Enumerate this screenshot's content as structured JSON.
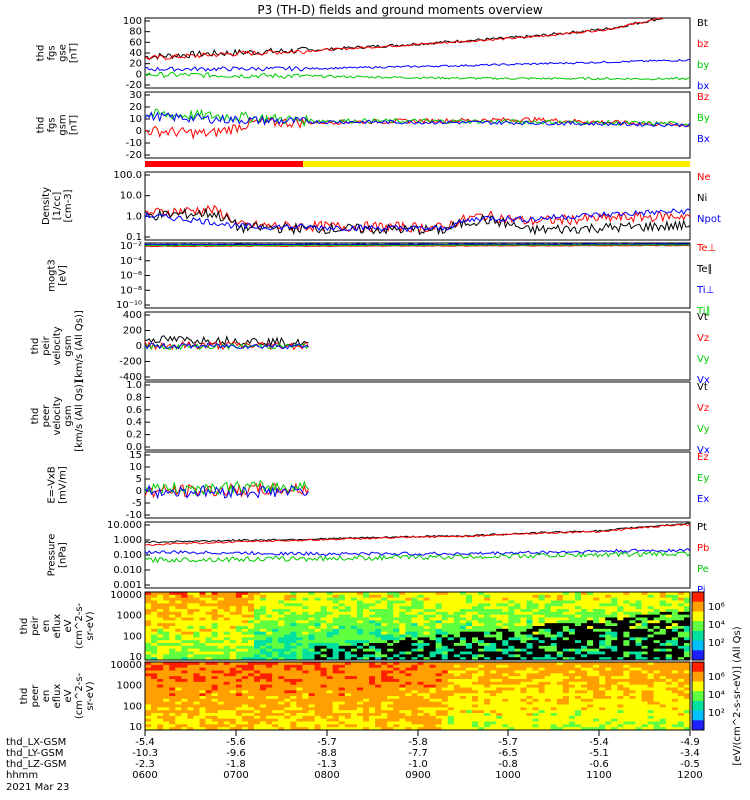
{
  "title": "P3 (TH-D) fields and ground moments overview",
  "colors": {
    "black": "#000000",
    "red": "#ff0000",
    "green": "#00cc00",
    "blue": "#0000ff",
    "yellow": "#ffee00"
  },
  "chart_data": [
    {
      "panel": "fgs-gse",
      "type": "line",
      "ylabel": [
        "thd",
        "fgs",
        "gse",
        "[nT]"
      ],
      "ylim": [
        -30,
        100
      ],
      "yticks": [
        "100",
        "80",
        "60",
        "40",
        "20",
        "0",
        "-20"
      ],
      "series": [
        {
          "name": "Bt",
          "color": "black",
          "path": [
            [
              0,
              28
            ],
            [
              0.15,
              35
            ],
            [
              0.3,
              40
            ],
            [
              0.5,
              52
            ],
            [
              0.7,
              65
            ],
            [
              0.85,
              80
            ],
            [
              0.95,
              100
            ]
          ],
          "noise": 8
        },
        {
          "name": "bz",
          "color": "red",
          "path": [
            [
              0,
              25
            ],
            [
              0.15,
              33
            ],
            [
              0.3,
              39
            ],
            [
              0.5,
              51
            ],
            [
              0.7,
              64
            ],
            [
              0.85,
              79
            ],
            [
              0.95,
              100
            ]
          ],
          "noise": 6
        },
        {
          "name": "by",
          "color": "green",
          "path": [
            [
              0,
              -5
            ],
            [
              0.3,
              -8
            ],
            [
              0.6,
              -12
            ],
            [
              1,
              -13
            ]
          ],
          "noise": 6
        },
        {
          "name": "bx",
          "color": "blue",
          "path": [
            [
              0,
              5
            ],
            [
              0.3,
              6
            ],
            [
              0.6,
              12
            ],
            [
              1,
              22
            ]
          ],
          "noise": 5
        }
      ]
    },
    {
      "panel": "fgs-gsm",
      "type": "line",
      "ylabel": [
        "thd",
        "fgs",
        "gsm",
        "[nT]"
      ],
      "ylim": [
        -30,
        30
      ],
      "yticks": [
        "30",
        "20",
        "10",
        "0",
        "-10",
        "-20"
      ],
      "series": [
        {
          "name": "Bz",
          "color": "red",
          "path": [
            [
              0,
              -5
            ],
            [
              0.12,
              -8
            ],
            [
              0.2,
              2
            ],
            [
              0.4,
              3
            ],
            [
              0.7,
              5
            ],
            [
              1,
              0
            ]
          ],
          "noise": 6
        },
        {
          "name": "By",
          "color": "green",
          "path": [
            [
              0,
              10
            ],
            [
              0.15,
              8
            ],
            [
              0.3,
              4
            ],
            [
              0.7,
              3
            ],
            [
              1,
              1
            ]
          ],
          "noise": 6
        },
        {
          "name": "Bx",
          "color": "blue",
          "path": [
            [
              0,
              8
            ],
            [
              0.15,
              5
            ],
            [
              0.3,
              3
            ],
            [
              0.7,
              2
            ],
            [
              1,
              0
            ]
          ],
          "noise": 5
        }
      ]
    },
    {
      "panel": "density",
      "type": "line",
      "ylabel": [
        "Density",
        "[1/cc]",
        "[cm-3]"
      ],
      "ylog": true,
      "ylim": [
        0.1,
        200
      ],
      "yticks": [
        "100.0",
        "10.0",
        "1.0",
        "0.1"
      ],
      "series": [
        {
          "name": "Ne",
          "color": "red",
          "path": [
            [
              0,
              2
            ],
            [
              0.12,
              3
            ],
            [
              0.17,
              0.5
            ],
            [
              0.55,
              0.4
            ],
            [
              0.62,
              1.5
            ],
            [
              0.7,
              0.8
            ],
            [
              1,
              1.5
            ]
          ],
          "noise": 0.5
        },
        {
          "name": "Ni",
          "color": "black",
          "path": [
            [
              0,
              1.5
            ],
            [
              0.12,
              2
            ],
            [
              0.17,
              0.4
            ],
            [
              0.55,
              0.3
            ],
            [
              0.62,
              1
            ],
            [
              0.7,
              0.3
            ],
            [
              1,
              0.5
            ]
          ],
          "noise": 0.5
        },
        {
          "name": "Npot",
          "color": "blue",
          "path": [
            [
              0,
              1.5
            ],
            [
              0.17,
              0.45
            ],
            [
              0.55,
              0.35
            ],
            [
              0.62,
              1.2
            ],
            [
              0.7,
              1
            ],
            [
              1,
              2.5
            ]
          ],
          "noise": 0.3
        }
      ]
    },
    {
      "panel": "moments",
      "type": "line",
      "ylabel": [
        "mogt3",
        "[eV]"
      ],
      "ylog": true,
      "ylim": [
        1e-10,
        1
      ],
      "yticks": [
        "10⁻²",
        "10⁻⁴",
        "10⁻⁶",
        "10⁻⁸",
        "10⁻¹⁰"
      ],
      "series": [
        {
          "name": "Te⊥",
          "color": "red",
          "path": [
            [
              0,
              0.3
            ],
            [
              1,
              0.4
            ]
          ],
          "noise": 0.1
        },
        {
          "name": "Te∥",
          "color": "black",
          "path": [
            [
              0,
              0.5
            ],
            [
              1,
              0.6
            ]
          ],
          "noise": 0.1
        },
        {
          "name": "Ti⊥",
          "color": "blue",
          "path": [
            [
              0,
              0.6
            ],
            [
              1,
              0.7
            ]
          ],
          "noise": 0.1
        },
        {
          "name": "Ti∥",
          "color": "green",
          "path": [
            [
              0,
              0.4
            ],
            [
              1,
              0.5
            ]
          ],
          "noise": 0.1
        }
      ]
    },
    {
      "panel": "peir-velocity",
      "type": "line",
      "ylabel": [
        "thd",
        "peir",
        "velocity",
        "gsm",
        "[km/s (All Qs)]"
      ],
      "ylim": [
        -400,
        400
      ],
      "yticks": [
        "400",
        "200",
        "0",
        "-200",
        "-400"
      ],
      "series": [
        {
          "name": "Vt",
          "color": "black",
          "path": [
            [
              0,
              80
            ],
            [
              0.2,
              60
            ],
            [
              0.3,
              30
            ]
          ],
          "noise": 60
        },
        {
          "name": "Vz",
          "color": "red",
          "path": [
            [
              0,
              10
            ],
            [
              0.3,
              5
            ]
          ],
          "noise": 60
        },
        {
          "name": "Vy",
          "color": "green",
          "path": [
            [
              0,
              -10
            ],
            [
              0.3,
              0
            ]
          ],
          "noise": 40
        },
        {
          "name": "Vx",
          "color": "blue",
          "path": [
            [
              0,
              0
            ],
            [
              0.3,
              0
            ]
          ],
          "noise": 40
        }
      ]
    },
    {
      "panel": "peer-velocity",
      "type": "line",
      "ylabel": [
        "thd",
        "peer",
        "velocity",
        "gsm",
        "[km/s (All Qs)]"
      ],
      "ylim": [
        0,
        1
      ],
      "yticks": [
        "1.0",
        "0.8",
        "0.6",
        "0.4",
        "0.2",
        "0.0"
      ],
      "series": [
        {
          "name": "Vt",
          "color": "black",
          "path": []
        },
        {
          "name": "Vz",
          "color": "red",
          "path": []
        },
        {
          "name": "Vy",
          "color": "green",
          "path": []
        },
        {
          "name": "Vx",
          "color": "blue",
          "path": []
        }
      ]
    },
    {
      "panel": "efield",
      "type": "line",
      "ylabel": [
        "E=-VxB",
        "[mV/m]"
      ],
      "ylim": [
        -10,
        15
      ],
      "yticks": [
        "15",
        "10",
        "5",
        "0",
        "-5",
        "-10"
      ],
      "series": [
        {
          "name": "Ez",
          "color": "red",
          "path": [
            [
              0,
              0
            ],
            [
              0.3,
              1
            ]
          ],
          "noise": 3
        },
        {
          "name": "Ey",
          "color": "green",
          "path": [
            [
              0,
              1
            ],
            [
              0.3,
              2
            ]
          ],
          "noise": 3
        },
        {
          "name": "Ex",
          "color": "blue",
          "path": [
            [
              0,
              0
            ],
            [
              0.3,
              0
            ]
          ],
          "noise": 3
        }
      ]
    },
    {
      "panel": "pressure",
      "type": "line",
      "ylabel": [
        "Pressure",
        "[nPa]"
      ],
      "ylog": true,
      "ylim": [
        0.001,
        10
      ],
      "yticks": [
        "10.000",
        "1.000",
        "0.100",
        "0.010",
        "0.001"
      ],
      "series": [
        {
          "name": "Pt",
          "color": "black",
          "path": [
            [
              0,
              0.6
            ],
            [
              0.3,
              0.9
            ],
            [
              0.6,
              1.5
            ],
            [
              0.85,
              3
            ],
            [
              1,
              8
            ]
          ],
          "noise": 0.1
        },
        {
          "name": "Pb",
          "color": "red",
          "path": [
            [
              0,
              0.4
            ],
            [
              0.3,
              0.8
            ],
            [
              0.6,
              1.4
            ],
            [
              0.85,
              2.8
            ],
            [
              1,
              7
            ]
          ],
          "noise": 0.1
        },
        {
          "name": "Pe",
          "color": "green",
          "path": [
            [
              0,
              0.05
            ],
            [
              0.3,
              0.06
            ],
            [
              0.6,
              0.08
            ],
            [
              1,
              0.12
            ]
          ],
          "noise": 0.3
        },
        {
          "name": "Pi",
          "color": "blue",
          "path": [
            [
              0,
              0.15
            ],
            [
              0.3,
              0.12
            ],
            [
              0.6,
              0.12
            ],
            [
              1,
              0.2
            ]
          ],
          "noise": 0.2
        }
      ]
    },
    {
      "panel": "peir-eflux",
      "type": "heatmap",
      "ylabel": [
        "thd",
        "peir",
        "en",
        "eflux",
        "eV",
        "(cm^2-s-",
        "sr-eV)"
      ],
      "ylog": true,
      "ylim": [
        5,
        20000
      ],
      "yticks": [
        "10000",
        "1000",
        "100",
        "10"
      ],
      "colorbar": {
        "label": "[eV/(cm^2-s-sr-eV)] (All Qs)",
        "ticks": [
          "10⁶",
          "10⁴",
          "10²"
        ]
      }
    },
    {
      "panel": "peer-eflux",
      "type": "heatmap",
      "ylabel": [
        "thd",
        "peer",
        "en",
        "eflux",
        "eV",
        "(cm^2-s-",
        "sr-eV)"
      ],
      "ylog": true,
      "ylim": [
        5,
        20000
      ],
      "yticks": [
        "10000",
        "1000",
        "100",
        "10"
      ],
      "colorbar": {
        "label": "[eV/(cm^2-s-sr-eV)] (All Qs)",
        "ticks": [
          "10⁶",
          "10⁴",
          "10²"
        ]
      }
    }
  ],
  "footer": {
    "rows": [
      {
        "label": "thd_LX-GSM",
        "values": [
          "-5.4",
          "-5.6",
          "-5.7",
          "-5.8",
          "-5.7",
          "-5.4",
          "-4.9"
        ]
      },
      {
        "label": "thd_LY-GSM",
        "values": [
          "-10.3",
          "-9.6",
          "-8.8",
          "-7.7",
          "-6.5",
          "-5.1",
          "-3.4"
        ]
      },
      {
        "label": "thd_LZ-GSM",
        "values": [
          "-2.3",
          "-1.8",
          "-1.3",
          "-1.0",
          "-0.8",
          "-0.6",
          "-0.5"
        ]
      },
      {
        "label": "hhmm",
        "values": [
          "0600",
          "0700",
          "0800",
          "0900",
          "1000",
          "1100",
          "1200"
        ]
      }
    ],
    "date": "2021 Mar 23"
  }
}
